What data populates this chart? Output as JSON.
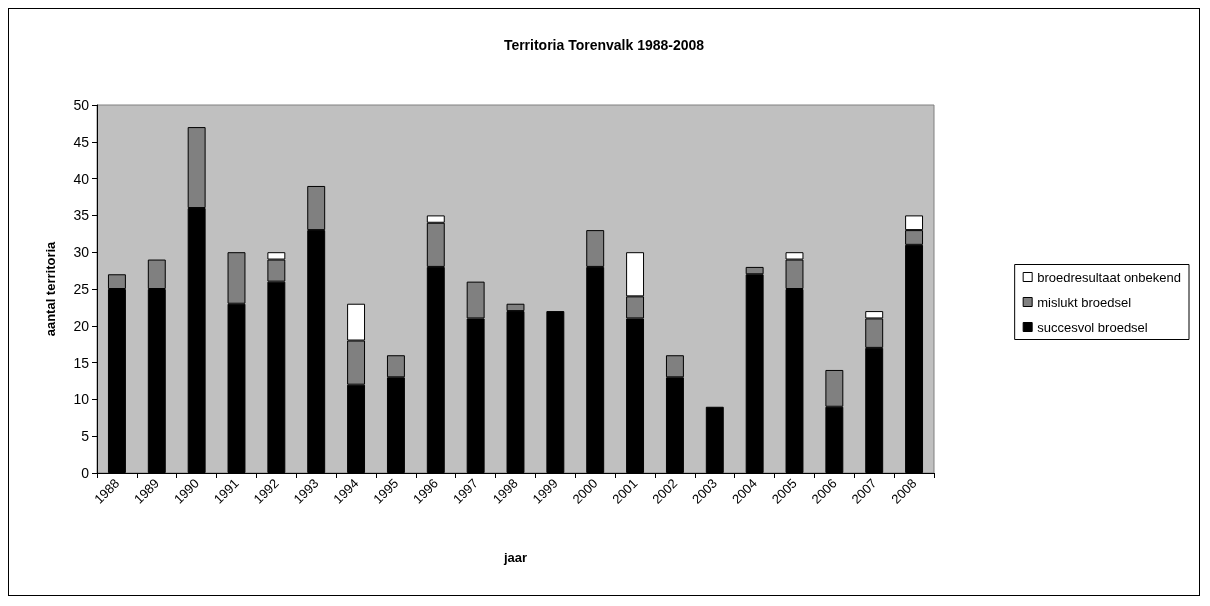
{
  "chart_data": {
    "type": "bar",
    "title": "Territoria Torenvalk 1988-2008",
    "xlabel": "jaar",
    "ylabel": "aantal territoria",
    "categories": [
      "1988",
      "1989",
      "1990",
      "1991",
      "1992",
      "1993",
      "1994",
      "1995",
      "1996",
      "1997",
      "1998",
      "1999",
      "2000",
      "2001",
      "2002",
      "2003",
      "2004",
      "2005",
      "2006",
      "2007",
      "2008"
    ],
    "stacked": true,
    "series": [
      {
        "name": "succesvol broedsel",
        "color": "#000000",
        "values": [
          25,
          25,
          36,
          23,
          26,
          33,
          12,
          13,
          28,
          21,
          22,
          22,
          28,
          21,
          13,
          9,
          27,
          25,
          9,
          17,
          31
        ]
      },
      {
        "name": "mislukt broedsel",
        "color": "#808080",
        "values": [
          2,
          4,
          11,
          7,
          3,
          6,
          6,
          3,
          6,
          5,
          1,
          null,
          5,
          3,
          3,
          null,
          1,
          4,
          5,
          4,
          2
        ]
      },
      {
        "name": "broedresultaat onbekend",
        "color": "#ffffff",
        "values": [
          null,
          null,
          null,
          null,
          1,
          null,
          5,
          null,
          1,
          null,
          null,
          null,
          null,
          6,
          null,
          null,
          null,
          1,
          null,
          1,
          2
        ]
      }
    ],
    "ylim": [
      0,
      50
    ],
    "yticks": [
      0,
      5,
      10,
      15,
      20,
      25,
      30,
      35,
      40,
      45,
      50
    ],
    "grid": false,
    "legend": "right"
  }
}
